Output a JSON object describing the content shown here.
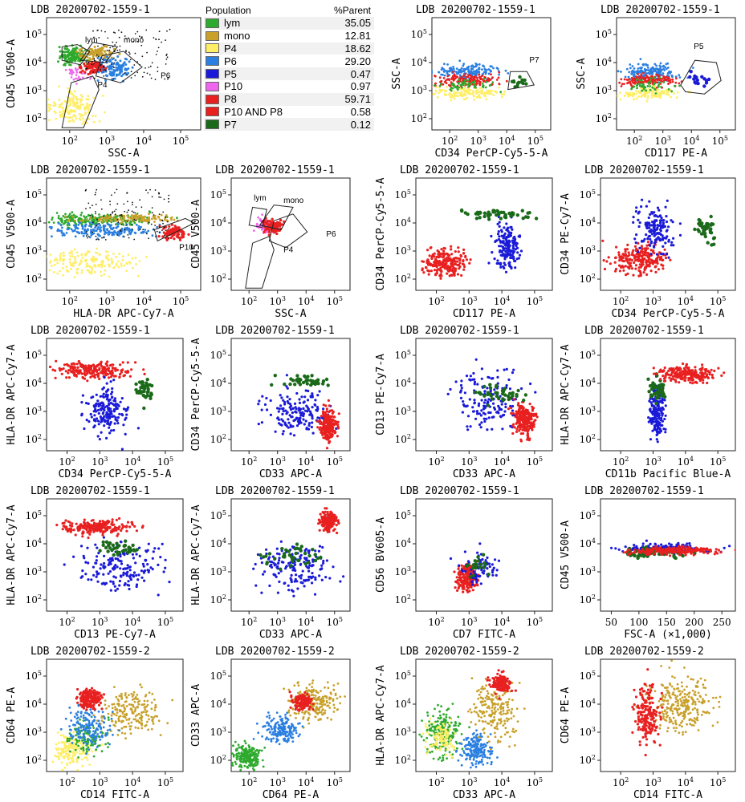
{
  "population_table": {
    "header": {
      "population": "Population",
      "parent": "%Parent"
    },
    "rows": [
      {
        "name": "lym",
        "value": "35.05",
        "color": "#2eaa2e"
      },
      {
        "name": "mono",
        "value": "12.81",
        "color": "#c8a02a"
      },
      {
        "name": "P4",
        "value": "18.62",
        "color": "#ffee66"
      },
      {
        "name": "P6",
        "value": "29.20",
        "color": "#2a7fe0"
      },
      {
        "name": "P5",
        "value": "0.47",
        "color": "#1a1ad8"
      },
      {
        "name": "P10",
        "value": "0.97",
        "color": "#ee66ee"
      },
      {
        "name": "P8",
        "value": "59.71",
        "color": "#e82020"
      },
      {
        "name": "P10 AND P8",
        "value": "0.58",
        "color": "#e82020"
      },
      {
        "name": "P7",
        "value": "0.12",
        "color": "#1a6a1a"
      }
    ]
  },
  "chart_data": [
    {
      "type": "scatter",
      "title": "LDB 20200702-1559-1",
      "xlabel": "SSC-A",
      "ylabel": "CD45 V500-A",
      "xscale": "log",
      "yscale": "log",
      "xticks": [
        "10^2",
        "10^3",
        "10^4",
        "10^5"
      ],
      "yticks": [
        "10^2",
        "10^3",
        "10^4",
        "10^5"
      ],
      "gates": [
        "lym",
        "mono",
        "P6",
        "P4"
      ],
      "populations": [
        "P4",
        "lym",
        "mono",
        "P6",
        "P10",
        "P8"
      ]
    },
    {
      "type": "scatter",
      "title": "LDB 20200702-1559-1",
      "xlabel": "CD34 PerCP-Cy5-5-A",
      "ylabel": "SSC-A",
      "xscale": "log",
      "yscale": "log",
      "xticks": [
        "10^2",
        "10^3",
        "10^4",
        "10^5"
      ],
      "yticks": [
        "10^2",
        "10^3",
        "10^4",
        "10^5"
      ],
      "gates": [
        "P7"
      ],
      "populations": [
        "P6",
        "P8",
        "P4",
        "lym",
        "P7"
      ]
    },
    {
      "type": "scatter",
      "title": "LDB 20200702-1559-1",
      "xlabel": "CD117 PE-A",
      "ylabel": "SSC-A",
      "xscale": "log",
      "yscale": "log",
      "xticks": [
        "10^2",
        "10^3",
        "10^4",
        "10^5"
      ],
      "yticks": [
        "10^2",
        "10^3",
        "10^4",
        "10^5"
      ],
      "gates": [
        "P5"
      ],
      "populations": [
        "P6",
        "P8",
        "P4",
        "lym",
        "P5"
      ]
    },
    {
      "type": "scatter",
      "title": "LDB 20200702-1559-1",
      "xlabel": "HLA-DR APC-Cy7-A",
      "ylabel": "CD45 V500-A",
      "xscale": "log",
      "yscale": "log",
      "xticks": [
        "10^2",
        "10^3",
        "10^4",
        "10^5"
      ],
      "yticks": [
        "10^2",
        "10^3",
        "10^4",
        "10^5"
      ],
      "gates": [
        "P10"
      ],
      "populations": [
        "lym",
        "mono",
        "P6",
        "P4",
        "P8"
      ]
    },
    {
      "type": "scatter",
      "title": "LDB 20200702-1559-1",
      "xlabel": "SSC-A",
      "ylabel": "CD45 V500-A",
      "xscale": "log",
      "yscale": "log",
      "xticks": [
        "10^2",
        "10^3",
        "10^4",
        "10^5"
      ],
      "yticks": [
        "10^2",
        "10^3",
        "10^4",
        "10^5"
      ],
      "gates": [
        "lym",
        "mono",
        "P6",
        "P4"
      ],
      "populations": [
        "P10",
        "P8"
      ]
    },
    {
      "type": "scatter",
      "title": "LDB 20200702-1559-1",
      "xlabel": "CD117 PE-A",
      "ylabel": "CD34 PerCP-Cy5-5-A",
      "xscale": "log",
      "yscale": "log",
      "xticks": [
        "10^2",
        "10^3",
        "10^4",
        "10^5"
      ],
      "yticks": [
        "10^2",
        "10^3",
        "10^4",
        "10^5"
      ],
      "gates": [],
      "populations": [
        "P8",
        "P5",
        "P7"
      ]
    },
    {
      "type": "scatter",
      "title": "LDB 20200702-1559-1",
      "xlabel": "CD34 PerCP-Cy5-5-A",
      "ylabel": "CD34 PE-Cy7-A",
      "xscale": "log",
      "yscale": "log",
      "xticks": [
        "10^2",
        "10^3",
        "10^4",
        "10^5"
      ],
      "yticks": [
        "10^2",
        "10^3",
        "10^4",
        "10^5"
      ],
      "gates": [],
      "populations": [
        "P8",
        "P5",
        "P7"
      ]
    },
    {
      "type": "scatter",
      "title": "LDB 20200702-1559-1",
      "xlabel": "CD34 PerCP-Cy5-5-A",
      "ylabel": "HLA-DR APC-Cy7-A",
      "xscale": "log",
      "yscale": "log",
      "xticks": [
        "10^2",
        "10^3",
        "10^4",
        "10^5"
      ],
      "yticks": [
        "10^2",
        "10^3",
        "10^4",
        "10^5"
      ],
      "gates": [],
      "populations": [
        "P8",
        "P5",
        "P7"
      ]
    },
    {
      "type": "scatter",
      "title": "LDB 20200702-1559-1",
      "xlabel": "CD33 APC-A",
      "ylabel": "CD34 PerCP-Cy5-5-A",
      "xscale": "log",
      "yscale": "log",
      "xticks": [
        "10^2",
        "10^3",
        "10^4",
        "10^5"
      ],
      "yticks": [
        "10^2",
        "10^3",
        "10^4",
        "10^5"
      ],
      "gates": [],
      "populations": [
        "P5",
        "P8",
        "P7"
      ]
    },
    {
      "type": "scatter",
      "title": "LDB 20200702-1559-1",
      "xlabel": "CD33 APC-A",
      "ylabel": "CD13 PE-Cy7-A",
      "xscale": "log",
      "yscale": "log",
      "xticks": [
        "10^2",
        "10^3",
        "10^4",
        "10^5"
      ],
      "yticks": [
        "10^2",
        "10^3",
        "10^4",
        "10^5"
      ],
      "gates": [],
      "populations": [
        "P5",
        "P8",
        "P7"
      ]
    },
    {
      "type": "scatter",
      "title": "LDB 20200702-1559-1",
      "xlabel": "CD11b Pacific Blue-A",
      "ylabel": "HLA-DR APC-Cy7-A",
      "xscale": "log",
      "yscale": "log",
      "xticks": [
        "10^2",
        "10^3",
        "10^4",
        "10^5"
      ],
      "yticks": [
        "10^2",
        "10^3",
        "10^4",
        "10^5"
      ],
      "gates": [],
      "populations": [
        "P5",
        "P7",
        "P8"
      ]
    },
    {
      "type": "scatter",
      "title": "LDB 20200702-1559-1",
      "xlabel": "CD13 PE-Cy7-A",
      "ylabel": "HLA-DR APC-Cy7-A",
      "xscale": "log",
      "yscale": "log",
      "xticks": [
        "10^2",
        "10^3",
        "10^4",
        "10^5"
      ],
      "yticks": [
        "10^2",
        "10^3",
        "10^4",
        "10^5"
      ],
      "gates": [],
      "populations": [
        "P5",
        "P8",
        "P7"
      ]
    },
    {
      "type": "scatter",
      "title": "LDB 20200702-1559-1",
      "xlabel": "CD33 APC-A",
      "ylabel": "HLA-DR APC-Cy7-A",
      "xscale": "log",
      "yscale": "log",
      "xticks": [
        "10^2",
        "10^3",
        "10^4",
        "10^5"
      ],
      "yticks": [
        "10^2",
        "10^3",
        "10^4",
        "10^5"
      ],
      "gates": [],
      "populations": [
        "P5",
        "P7",
        "P8"
      ]
    },
    {
      "type": "scatter",
      "title": "LDB 20200702-1559-1",
      "xlabel": "CD7 FITC-A",
      "ylabel": "CD56 BV605-A",
      "xscale": "log",
      "yscale": "log",
      "xticks": [
        "10^2",
        "10^3",
        "10^4",
        "10^5"
      ],
      "yticks": [
        "10^2",
        "10^3",
        "10^4",
        "10^5"
      ],
      "gates": [],
      "populations": [
        "P8",
        "P5",
        "P7"
      ]
    },
    {
      "type": "scatter",
      "title": "LDB 20200702-1559-1",
      "xlabel": "FSC-A (×1,000)",
      "ylabel": "CD45 V500-A",
      "xscale": "linear",
      "yscale": "log",
      "xticks": [
        "50",
        "100",
        "150",
        "200",
        "250"
      ],
      "yticks": [
        "10^2",
        "10^3",
        "10^4",
        "10^5"
      ],
      "gates": [],
      "populations": [
        "P5",
        "P7",
        "P8"
      ]
    },
    {
      "type": "scatter",
      "title": "LDB 20200702-1559-2",
      "xlabel": "CD14 FITC-A",
      "ylabel": "CD64 PE-A",
      "xscale": "log",
      "yscale": "log",
      "xticks": [
        "10^2",
        "10^3",
        "10^4",
        "10^5"
      ],
      "yticks": [
        "10^2",
        "10^3",
        "10^4",
        "10^5"
      ],
      "gates": [],
      "populations": [
        "P4",
        "lym",
        "mono",
        "P6",
        "P8"
      ]
    },
    {
      "type": "scatter",
      "title": "LDB 20200702-1559-2",
      "xlabel": "CD64 PE-A",
      "ylabel": "CD33 APC-A",
      "xscale": "log",
      "yscale": "log",
      "xticks": [
        "10^2",
        "10^3",
        "10^4",
        "10^5"
      ],
      "yticks": [
        "10^2",
        "10^3",
        "10^4",
        "10^5"
      ],
      "gates": [],
      "populations": [
        "lym",
        "mono",
        "P6",
        "P8"
      ]
    },
    {
      "type": "scatter",
      "title": "LDB 20200702-1559-2",
      "xlabel": "CD33 APC-A",
      "ylabel": "HLA-DR APC-Cy7-A",
      "xscale": "log",
      "yscale": "log",
      "xticks": [
        "10^2",
        "10^3",
        "10^4",
        "10^5"
      ],
      "yticks": [
        "10^2",
        "10^3",
        "10^4",
        "10^5"
      ],
      "gates": [],
      "populations": [
        "lym",
        "P4",
        "mono",
        "P6",
        "P8"
      ]
    },
    {
      "type": "scatter",
      "title": "LDB 20200702-1559-2",
      "xlabel": "CD14 FITC-A",
      "ylabel": "CD64 PE-A",
      "xscale": "log",
      "yscale": "log",
      "xticks": [
        "10^2",
        "10^3",
        "10^4",
        "10^5"
      ],
      "yticks": [
        "10^2",
        "10^3",
        "10^4",
        "10^5"
      ],
      "gates": [],
      "populations": [
        "mono",
        "P8"
      ]
    }
  ]
}
